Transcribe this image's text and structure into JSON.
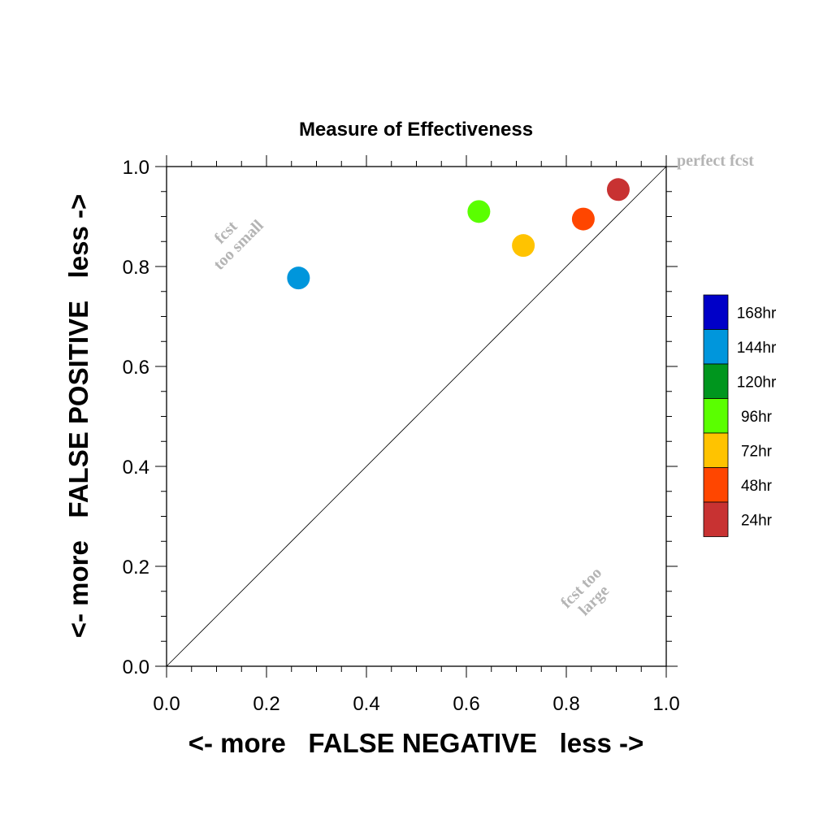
{
  "chart_data": {
    "type": "scatter",
    "title": "Measure of Effectiveness",
    "xlabel": "<- more   FALSE NEGATIVE   less ->",
    "ylabel": "<- more   FALSE POSITIVE   less ->",
    "xlim": [
      0.0,
      1.0
    ],
    "ylim": [
      0.0,
      1.0
    ],
    "x_ticks": [
      "0.0",
      "0.2",
      "0.4",
      "0.6",
      "0.8",
      "1.0"
    ],
    "y_ticks": [
      "0.0",
      "0.2",
      "0.4",
      "0.6",
      "0.8",
      "1.0"
    ],
    "grid": false,
    "reference_line": {
      "from": [
        0.0,
        0.0
      ],
      "to": [
        1.0,
        1.0
      ]
    },
    "annotations": {
      "perfect": "perfect fcst",
      "too_small_1": "fcst",
      "too_small_2": "too small",
      "too_large_1": "fcst too",
      "too_large_2": "large"
    },
    "legend": {
      "placement": "right",
      "entries": [
        {
          "label": "168hr",
          "color": "#0000c8"
        },
        {
          "label": "144hr",
          "color": "#0096dc"
        },
        {
          "label": "120hr",
          "color": "#00961e"
        },
        {
          "label": "96hr",
          "color": "#5aff00"
        },
        {
          "label": "72hr",
          "color": "#ffc300"
        },
        {
          "label": "48hr",
          "color": "#ff4600"
        },
        {
          "label": "24hr",
          "color": "#c83232"
        }
      ]
    },
    "points": [
      {
        "series": "144hr",
        "x": 0.264,
        "y": 0.777,
        "color": "#0096dc"
      },
      {
        "series": "96hr",
        "x": 0.625,
        "y": 0.91,
        "color": "#5aff00"
      },
      {
        "series": "72hr",
        "x": 0.714,
        "y": 0.842,
        "color": "#ffc300"
      },
      {
        "series": "48hr",
        "x": 0.834,
        "y": 0.895,
        "color": "#ff4600"
      },
      {
        "series": "24hr",
        "x": 0.904,
        "y": 0.954,
        "color": "#c83232"
      }
    ]
  }
}
